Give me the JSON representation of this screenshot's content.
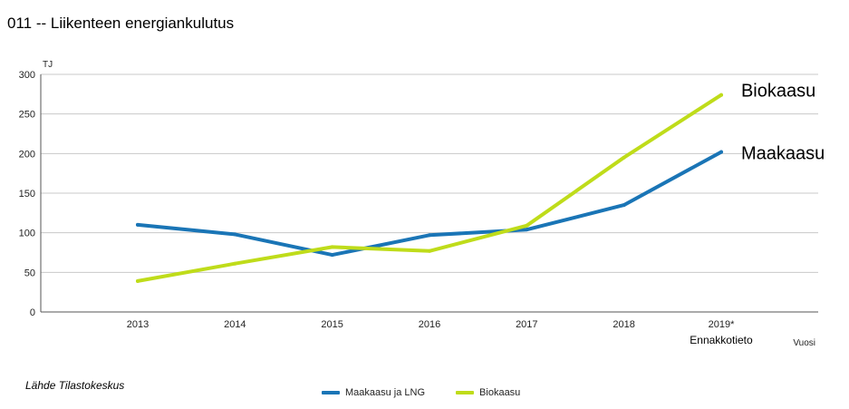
{
  "title": "011 -- Liikenteen energiankulutus",
  "source": "Lähde Tilastokeskus",
  "chart_data": {
    "type": "line",
    "ylabel": "TJ",
    "xlabel": "Vuosi",
    "ylim": [
      0,
      300
    ],
    "yticks": [
      0,
      50,
      100,
      150,
      200,
      250,
      300
    ],
    "categories": [
      "2013",
      "2014",
      "2015",
      "2016",
      "2017",
      "2018",
      "2019*"
    ],
    "category_note": "Ennakkotieto",
    "grid": true,
    "legend_position": "bottom",
    "series": [
      {
        "name": "Maakaasu ja LNG",
        "end_label": "Maakaasu",
        "color": "#1a75b6",
        "values": [
          110,
          98,
          72,
          97,
          104,
          135,
          202
        ]
      },
      {
        "name": "Biokaasu",
        "end_label": "Biokaasu",
        "color": "#bfdc1a",
        "values": [
          39,
          61,
          82,
          77,
          109,
          195,
          274
        ]
      }
    ]
  }
}
